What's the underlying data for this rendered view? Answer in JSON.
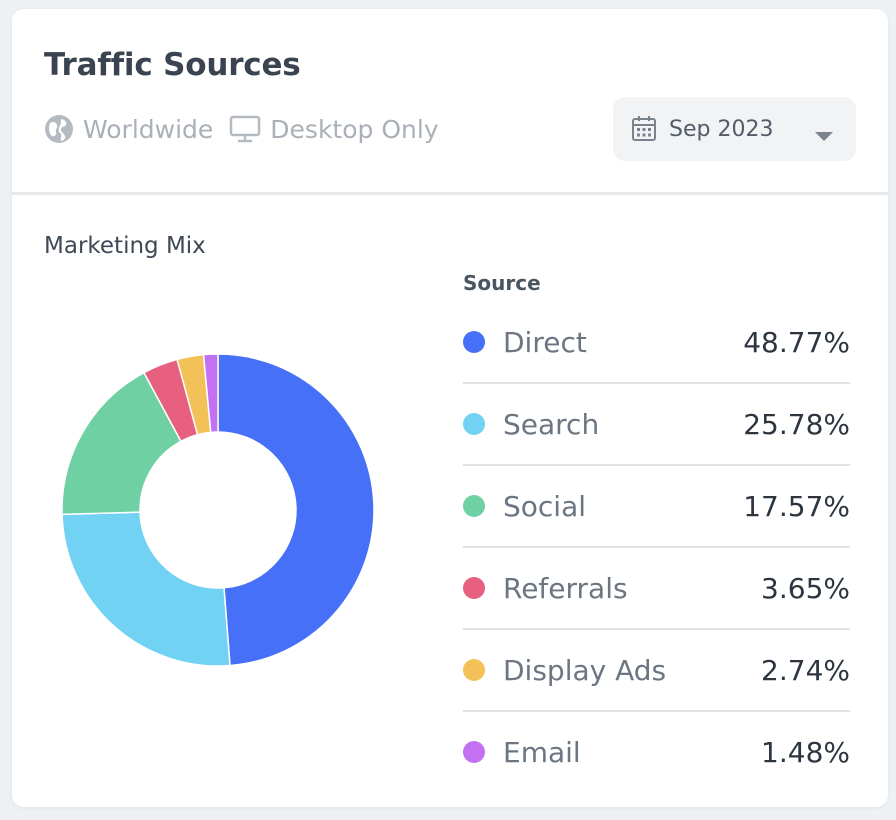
{
  "header": {
    "title": "Traffic Sources",
    "filters": [
      {
        "icon": "globe-icon",
        "label": "Worldwide"
      },
      {
        "icon": "desktop-icon",
        "label": "Desktop Only"
      }
    ],
    "date_picker": {
      "icon": "calendar-icon",
      "value": "Sep 2023",
      "chevron": "chevron-down-icon"
    }
  },
  "section": {
    "title": "Marketing Mix",
    "legend_header": "Source"
  },
  "chart_data": {
    "type": "pie",
    "donut": true,
    "categories": [
      "Direct",
      "Search",
      "Social",
      "Referrals",
      "Display Ads",
      "Email"
    ],
    "values": [
      48.77,
      25.78,
      17.57,
      3.65,
      2.74,
      1.48
    ],
    "labels": [
      "48.77%",
      "25.78%",
      "17.57%",
      "3.65%",
      "2.74%",
      "1.48%"
    ],
    "colors": [
      "#4670f7",
      "#72d2f4",
      "#6fd0a3",
      "#e8607f",
      "#f2c158",
      "#c271f2"
    ],
    "legend_placement": "right"
  }
}
